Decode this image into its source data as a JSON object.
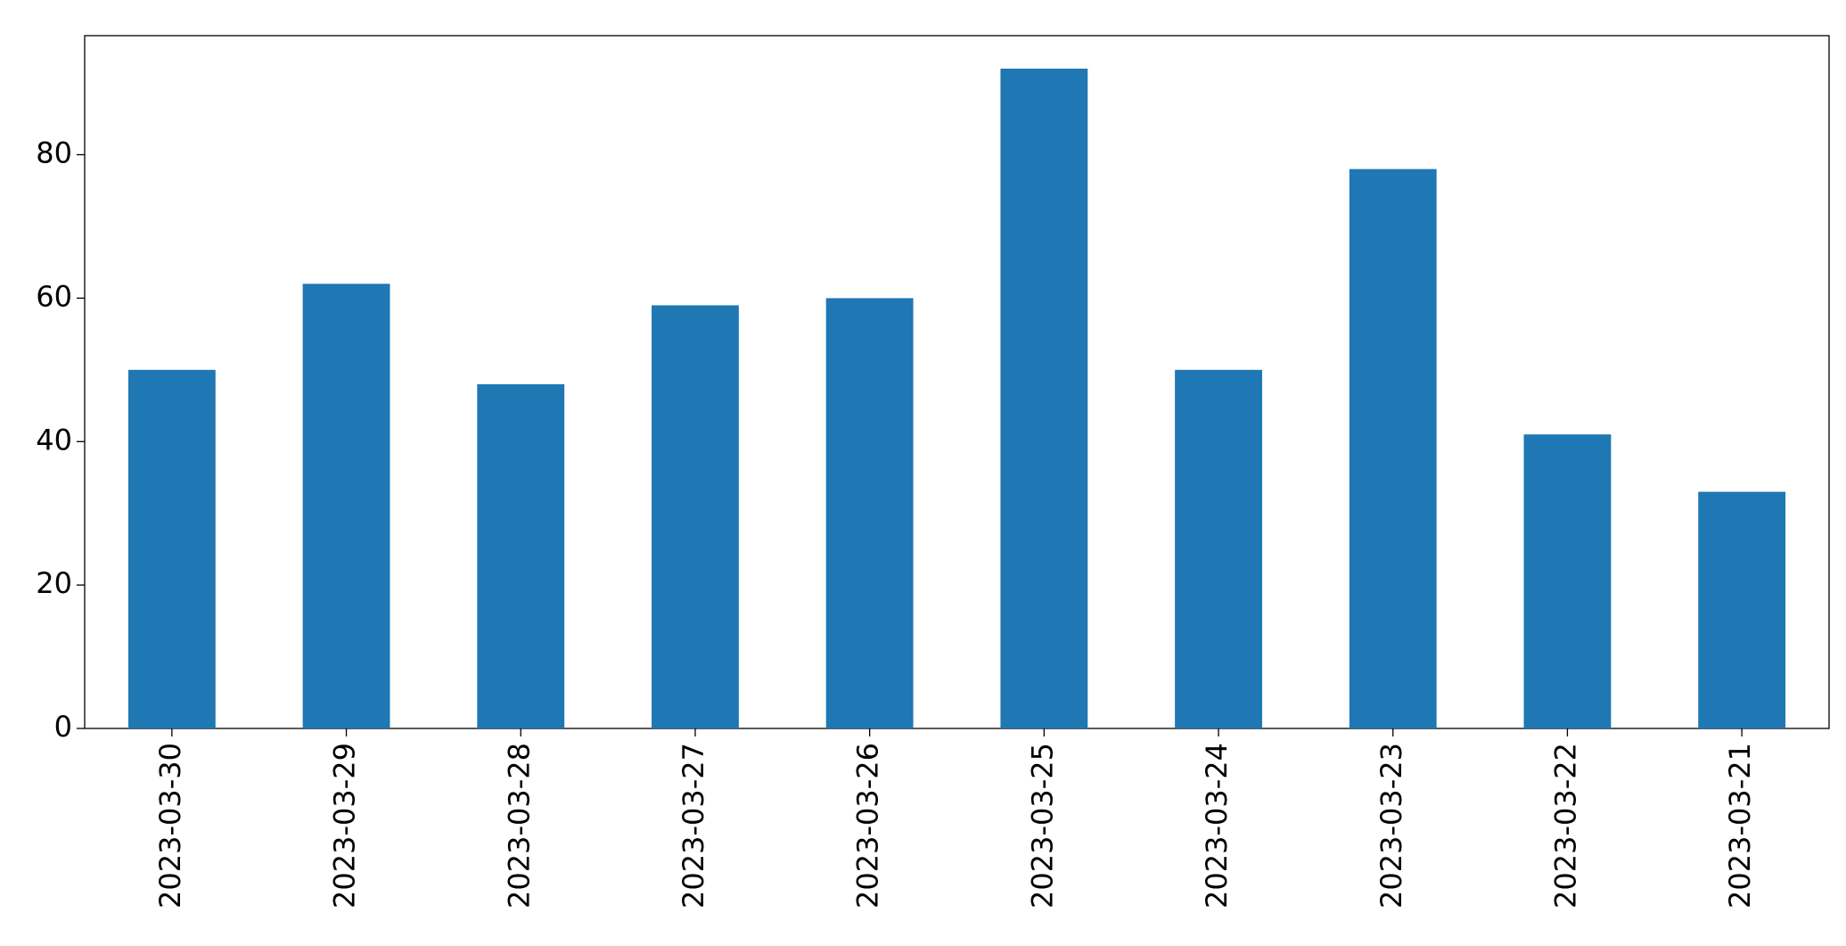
{
  "chart_data": {
    "type": "bar",
    "categories": [
      "2023-03-30",
      "2023-03-29",
      "2023-03-28",
      "2023-03-27",
      "2023-03-26",
      "2023-03-25",
      "2023-03-24",
      "2023-03-23",
      "2023-03-22",
      "2023-03-21"
    ],
    "values": [
      50,
      62,
      48,
      59,
      60,
      92,
      50,
      78,
      41,
      33
    ],
    "color": "#1f77b4",
    "ylim": [
      0,
      96.6
    ],
    "yticks": [
      0,
      20,
      40,
      60,
      80
    ],
    "grid": false
  }
}
